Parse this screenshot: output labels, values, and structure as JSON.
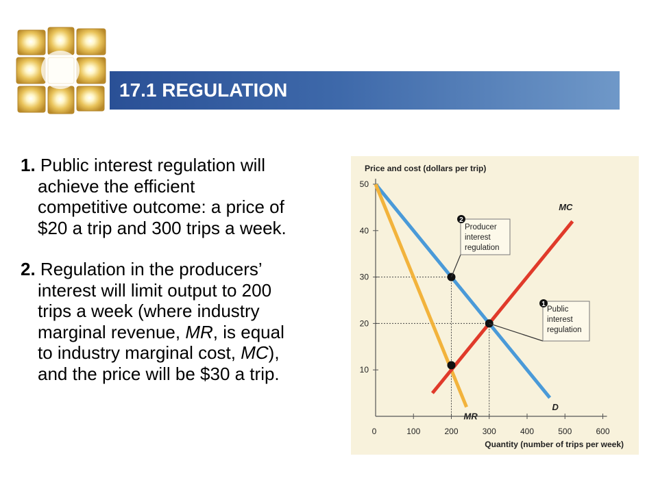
{
  "title": "17.1 REGULATION",
  "points": [
    {
      "number": "1.",
      "lines": [
        "Public interest regulation will",
        "achieve the efficient",
        "competitive outcome: a price of",
        "$20 a trip and 300 trips a week."
      ]
    },
    {
      "number": "2.",
      "line1": "Regulation in the producers’",
      "line2": "interest will limit output to 200",
      "line3": "trips a week (where industry",
      "line4_a": "marginal revenue, ",
      "line4_mr": "MR",
      "line4_b": ", is equal",
      "line5_a": "to industry marginal cost, ",
      "line5_mc": "MC",
      "line5_b": "),",
      "line6": "and the price will be $30 a trip."
    }
  ],
  "chart_data": {
    "type": "line",
    "title": "",
    "ylabel": "Price and cost (dollars per trip)",
    "xlabel": "Quantity (number of trips per week)",
    "xlim": [
      0,
      600
    ],
    "ylim": [
      0,
      50
    ],
    "x_ticks": [
      "0",
      "100",
      "200",
      "300",
      "400",
      "500",
      "600"
    ],
    "y_ticks": [
      "10",
      "20",
      "30",
      "40",
      "50"
    ],
    "series": [
      {
        "name": "D",
        "color": "#4a9ad8",
        "x": [
          0,
          460
        ],
        "y": [
          50,
          4
        ]
      },
      {
        "name": "MR",
        "color": "#f2b33c",
        "x": [
          0,
          240
        ],
        "y": [
          50,
          2
        ]
      },
      {
        "name": "MC",
        "color": "#e03a2a",
        "x": [
          150,
          520
        ],
        "y": [
          5,
          42
        ]
      }
    ],
    "points": [
      {
        "label": "Producer interest regulation",
        "number": "2",
        "x": 200,
        "y": 30
      },
      {
        "label": "",
        "number": "",
        "x": 200,
        "y": 11
      },
      {
        "label": "Public interest regulation",
        "number": "1",
        "x": 300,
        "y": 20
      }
    ],
    "annotations": {
      "producer": [
        "Producer",
        "interest",
        "regulation"
      ],
      "public": [
        "Public",
        "interest",
        "regulation"
      ]
    },
    "grid": false
  }
}
